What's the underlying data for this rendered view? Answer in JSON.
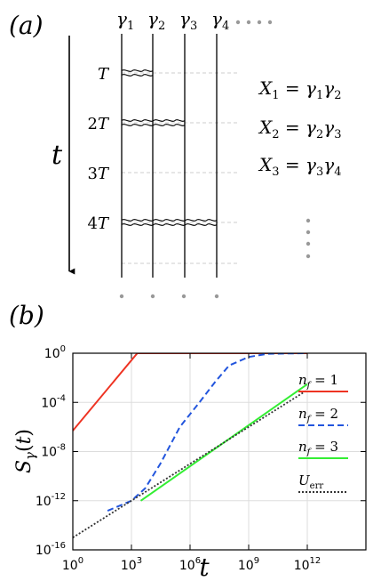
{
  "panel_a": {
    "label": "(a)",
    "time_axis": "t",
    "gammas": [
      {
        "sym": "γ",
        "sub": "1"
      },
      {
        "sym": "γ",
        "sub": "2"
      },
      {
        "sym": "γ",
        "sub": "3"
      },
      {
        "sym": "γ",
        "sub": "4"
      }
    ],
    "times": [
      {
        "coef": "",
        "var": "T"
      },
      {
        "coef": "2",
        "var": "T"
      },
      {
        "coef": "3",
        "var": "T"
      },
      {
        "coef": "4",
        "var": "T"
      }
    ],
    "interactions": [
      {
        "time_index": 0,
        "from": 1,
        "to": 2
      },
      {
        "time_index": 1,
        "from": 1,
        "to": 3
      },
      {
        "time_index": 3,
        "from": 1,
        "to": 4
      }
    ],
    "operators": [
      {
        "name": "X",
        "sub": "1",
        "a": "1",
        "b": "2"
      },
      {
        "name": "X",
        "sub": "2",
        "a": "2",
        "b": "3"
      },
      {
        "name": "X",
        "sub": "3",
        "a": "3",
        "b": "4"
      }
    ]
  },
  "panel_b": {
    "label": "(b)",
    "chart_data": {
      "type": "line",
      "xlabel": "t",
      "ylabel": "S_γ(t)",
      "x_scale": "log",
      "y_scale": "log",
      "xlim": [
        1,
        1000000000000000.0
      ],
      "ylim": [
        1e-16,
        1
      ],
      "x_ticks": [
        {
          "value": 1,
          "base": "10",
          "exp": "0"
        },
        {
          "value": 1000,
          "base": "10",
          "exp": "3"
        },
        {
          "value": 1000000,
          "base": "10",
          "exp": "6"
        },
        {
          "value": 1000000000,
          "base": "10",
          "exp": "9"
        },
        {
          "value": 1000000000000,
          "base": "10",
          "exp": "12"
        }
      ],
      "y_ticks": [
        {
          "value": 1,
          "base": "10",
          "exp": "0"
        },
        {
          "value": 0.0001,
          "base": "10",
          "exp": "-4"
        },
        {
          "value": 1e-08,
          "base": "10",
          "exp": "-8"
        },
        {
          "value": 1e-12,
          "base": "10",
          "exp": "-12"
        },
        {
          "value": 1e-16,
          "base": "10",
          "exp": "-16"
        }
      ],
      "grid": true,
      "legend_position": "right",
      "series": [
        {
          "name": "n_f = 1",
          "label_main": "n",
          "label_sub": "f",
          "label_value": "1",
          "color": "#ee3322",
          "style": "solid",
          "points": [
            [
              1,
              5e-07
            ],
            [
              2000,
              1
            ],
            [
              1000000000000.0,
              1
            ]
          ]
        },
        {
          "name": "n_f = 2",
          "label_main": "n",
          "label_sub": "f",
          "label_value": "2",
          "color": "#2255dd",
          "style": "dashed",
          "points": [
            [
              60,
              1.5e-13
            ],
            [
              1000,
              1e-12
            ],
            [
              5000,
              1e-11
            ],
            [
              30000,
              1e-09
            ],
            [
              300000,
              1e-06
            ],
            [
              3000000,
              0.0001
            ],
            [
              20000000,
              0.005
            ],
            [
              100000000,
              0.1
            ],
            [
              1000000000,
              0.5
            ],
            [
              10000000000,
              0.9
            ],
            [
              1000000000000.0,
              1
            ]
          ]
        },
        {
          "name": "n_f = 3",
          "label_main": "n",
          "label_sub": "f",
          "label_value": "3",
          "color": "#33ee33",
          "style": "solid",
          "points": [
            [
              3000,
              1e-12
            ],
            [
              1000000000000.0,
              0.003
            ]
          ]
        },
        {
          "name": "U_err",
          "label_main": "U",
          "label_sub": "err",
          "label_value": "",
          "color": "#333333",
          "style": "dotted",
          "points": [
            [
              1,
              1e-15
            ],
            [
              1000000000000.0,
              0.001
            ]
          ]
        }
      ]
    }
  }
}
